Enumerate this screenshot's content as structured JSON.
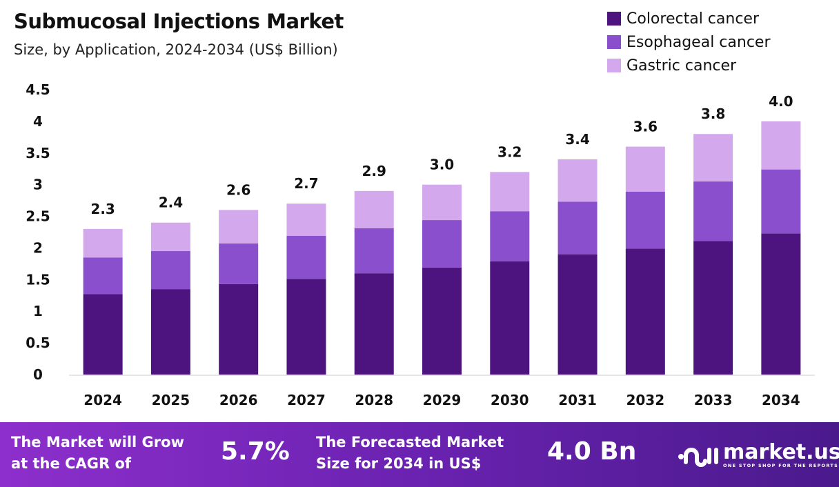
{
  "chart_data": {
    "type": "bar",
    "stacked": true,
    "title": "Submucosal Injections Market",
    "subtitle": "Size, by Application, 2024-2034 (US$ Billion)",
    "categories": [
      "2024",
      "2025",
      "2026",
      "2027",
      "2028",
      "2029",
      "2030",
      "2031",
      "2032",
      "2033",
      "2034"
    ],
    "series": [
      {
        "name": "Colorectal cancer",
        "color": "#4d1480",
        "values": [
          1.27,
          1.35,
          1.43,
          1.51,
          1.6,
          1.69,
          1.79,
          1.9,
          1.99,
          2.11,
          2.23
        ]
      },
      {
        "name": "Esophageal cancer",
        "color": "#8a4fcc",
        "values": [
          0.58,
          0.6,
          0.64,
          0.68,
          0.71,
          0.75,
          0.79,
          0.83,
          0.9,
          0.94,
          1.01
        ]
      },
      {
        "name": "Gastric cancer",
        "color": "#d3a8ec",
        "values": [
          0.45,
          0.45,
          0.53,
          0.51,
          0.59,
          0.56,
          0.62,
          0.67,
          0.71,
          0.75,
          0.76
        ]
      }
    ],
    "totals_labels": [
      "2.3",
      "2.4",
      "2.6",
      "2.7",
      "2.9",
      "3.0",
      "3.2",
      "3.4",
      "3.6",
      "3.8",
      "4.0"
    ],
    "yticks": [
      "0",
      "0.5",
      "1",
      "1.5",
      "2",
      "2.5",
      "3",
      "3.5",
      "4",
      "4.5"
    ],
    "ylim": [
      0,
      4.5
    ],
    "grid": false,
    "legend_position": "top-right"
  },
  "footer": {
    "cagr_text_1": "The Market will Grow",
    "cagr_text_2": "at the CAGR of",
    "cagr_value": "5.7%",
    "forecast_text_1": "The Forecasted Market",
    "forecast_text_2": "Size for 2034 in US$",
    "forecast_value": "4.0 Bn",
    "logo_name": "market.us",
    "logo_tagline": "ONE STOP SHOP FOR THE REPORTS"
  }
}
